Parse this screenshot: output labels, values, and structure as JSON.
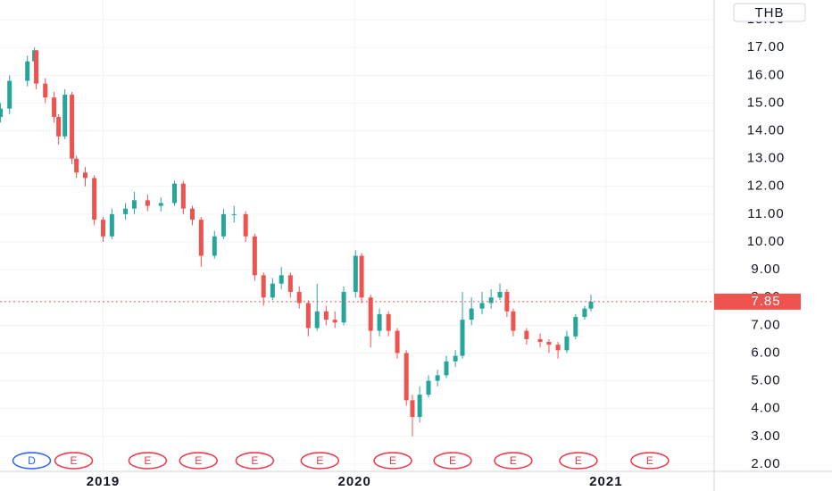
{
  "chart_data": {
    "type": "candlestick",
    "currency": "THB",
    "last_price": 7.85,
    "last_price_color": "#ef5350",
    "up_color": "#26a69a",
    "down_color": "#ef5350",
    "grid": true,
    "xlim": [
      2018.59,
      2021.43
    ],
    "xticks": [
      2019,
      2020,
      2021
    ],
    "ylim": [
      1.74,
      18.71
    ],
    "yticks": [
      {
        "value": 2,
        "label": "2.00"
      },
      {
        "value": 3,
        "label": "3.00"
      },
      {
        "value": 4,
        "label": "4.00"
      },
      {
        "value": 5,
        "label": "5.00"
      },
      {
        "value": 6,
        "label": "6.00"
      },
      {
        "value": 7,
        "label": "7.00"
      },
      {
        "value": 8,
        "label": "8.00"
      },
      {
        "value": 9,
        "label": "9.00"
      },
      {
        "value": 10,
        "label": "10.00"
      },
      {
        "value": 11,
        "label": "11.00"
      },
      {
        "value": 12,
        "label": "12.00"
      },
      {
        "value": 13,
        "label": "13.00"
      },
      {
        "value": 14,
        "label": "14.00"
      },
      {
        "value": 15,
        "label": "15.00"
      },
      {
        "value": 16,
        "label": "16.00"
      },
      {
        "value": 17,
        "label": "17.00"
      },
      {
        "value": 18,
        "label": "18.00"
      }
    ],
    "x": [
      2018.592,
      2018.628,
      2018.699,
      2018.727,
      2018.734,
      2018.77,
      2018.805,
      2018.823,
      2018.848,
      2018.876,
      2018.894,
      2018.929,
      2018.965,
      2019.0,
      2019.035,
      2019.089,
      2019.124,
      2019.177,
      2019.23,
      2019.284,
      2019.319,
      2019.355,
      2019.39,
      2019.443,
      2019.479,
      2019.521,
      2019.567,
      2019.603,
      2019.638,
      2019.674,
      2019.709,
      2019.745,
      2019.78,
      2019.816,
      2019.851,
      2019.887,
      2019.922,
      2019.957,
      2020.004,
      2020.028,
      2020.064,
      2020.099,
      2020.135,
      2020.17,
      2020.206,
      2020.23,
      2020.259,
      2020.294,
      2020.33,
      2020.365,
      2020.401,
      2020.429,
      2020.465,
      2020.507,
      2020.543,
      2020.578,
      2020.606,
      2020.631,
      2020.684,
      2020.738,
      2020.773,
      2020.809,
      2020.844,
      2020.879,
      2020.915,
      2020.94
    ],
    "open": [
      14.5,
      14.8,
      15.8,
      16.5,
      16.9,
      15.7,
      15.2,
      14.5,
      13.8,
      15.3,
      13.0,
      12.5,
      12.3,
      10.8,
      10.2,
      11.0,
      11.2,
      11.5,
      11.3,
      11.4,
      12.1,
      11.2,
      10.8,
      9.5,
      10.2,
      11.0,
      11.0,
      10.2,
      8.8,
      8.0,
      8.5,
      8.8,
      8.2,
      7.8,
      6.9,
      7.5,
      7.2,
      7.1,
      8.2,
      9.5,
      8.0,
      6.8,
      7.4,
      6.8,
      6.0,
      4.3,
      3.7,
      4.5,
      5.0,
      5.2,
      5.7,
      5.9,
      7.2,
      7.6,
      7.8,
      8.0,
      8.2,
      7.5,
      6.8,
      6.5,
      6.4,
      6.3,
      6.1,
      6.6,
      7.3,
      7.6
    ],
    "high": [
      15.0,
      16.0,
      16.7,
      17.0,
      16.9,
      15.9,
      15.4,
      14.6,
      15.5,
      15.4,
      13.1,
      12.7,
      12.4,
      10.9,
      11.2,
      11.4,
      11.8,
      11.7,
      11.6,
      12.2,
      12.2,
      11.3,
      10.9,
      10.4,
      11.2,
      11.3,
      11.1,
      10.3,
      8.9,
      8.7,
      9.1,
      8.9,
      8.4,
      7.9,
      8.5,
      7.7,
      7.5,
      8.4,
      9.7,
      9.6,
      8.1,
      7.6,
      7.5,
      6.9,
      6.1,
      4.5,
      4.8,
      5.2,
      5.4,
      5.9,
      6.1,
      8.2,
      8.0,
      8.2,
      8.3,
      8.5,
      8.3,
      7.6,
      6.9,
      6.7,
      6.5,
      6.4,
      6.8,
      7.4,
      7.7,
      8.1
    ],
    "low": [
      14.3,
      14.6,
      15.6,
      16.3,
      15.5,
      15.0,
      14.3,
      13.5,
      13.7,
      12.8,
      12.3,
      12.0,
      10.6,
      10.0,
      10.1,
      10.8,
      11.0,
      11.1,
      11.1,
      11.3,
      11.0,
      10.6,
      9.1,
      9.4,
      10.1,
      10.7,
      10.0,
      8.6,
      7.7,
      7.9,
      8.3,
      8.0,
      7.6,
      6.6,
      6.8,
      7.0,
      6.9,
      7.0,
      8.0,
      7.8,
      6.2,
      6.6,
      6.6,
      5.8,
      4.1,
      3.0,
      3.5,
      4.4,
      4.8,
      5.1,
      5.5,
      5.8,
      7.0,
      7.4,
      7.6,
      7.9,
      7.3,
      6.6,
      6.3,
      6.2,
      6.0,
      5.8,
      6.0,
      6.5,
      7.2,
      7.5
    ],
    "close": [
      14.8,
      15.8,
      16.5,
      16.9,
      15.7,
      15.2,
      14.5,
      13.8,
      15.3,
      13.0,
      12.5,
      12.3,
      10.8,
      10.2,
      11.0,
      11.2,
      11.5,
      11.3,
      11.4,
      12.1,
      11.2,
      10.8,
      9.5,
      10.2,
      11.0,
      11.0,
      10.2,
      8.8,
      8.0,
      8.5,
      8.8,
      8.2,
      7.8,
      6.9,
      7.5,
      7.2,
      7.1,
      8.2,
      9.5,
      8.0,
      6.8,
      7.4,
      6.8,
      6.0,
      4.3,
      3.7,
      4.5,
      5.0,
      5.2,
      5.7,
      5.9,
      7.2,
      7.6,
      7.8,
      8.0,
      8.2,
      7.5,
      6.8,
      6.5,
      6.4,
      6.3,
      6.1,
      6.6,
      7.3,
      7.6,
      7.85
    ],
    "events": [
      {
        "label": "D",
        "x": 2018.716,
        "color": "#2962ff"
      },
      {
        "label": "E",
        "x": 2018.883,
        "color": "#f23645"
      },
      {
        "label": "E",
        "x": 2019.177,
        "color": "#f23645"
      },
      {
        "label": "E",
        "x": 2019.379,
        "color": "#f23645"
      },
      {
        "label": "E",
        "x": 2019.603,
        "color": "#f23645"
      },
      {
        "label": "E",
        "x": 2019.862,
        "color": "#f23645"
      },
      {
        "label": "E",
        "x": 2020.152,
        "color": "#f23645"
      },
      {
        "label": "E",
        "x": 2020.39,
        "color": "#f23645"
      },
      {
        "label": "E",
        "x": 2020.631,
        "color": "#f23645"
      },
      {
        "label": "E",
        "x": 2020.89,
        "color": "#f23645"
      },
      {
        "label": "E",
        "x": 2021.174,
        "color": "#f23645"
      }
    ]
  }
}
